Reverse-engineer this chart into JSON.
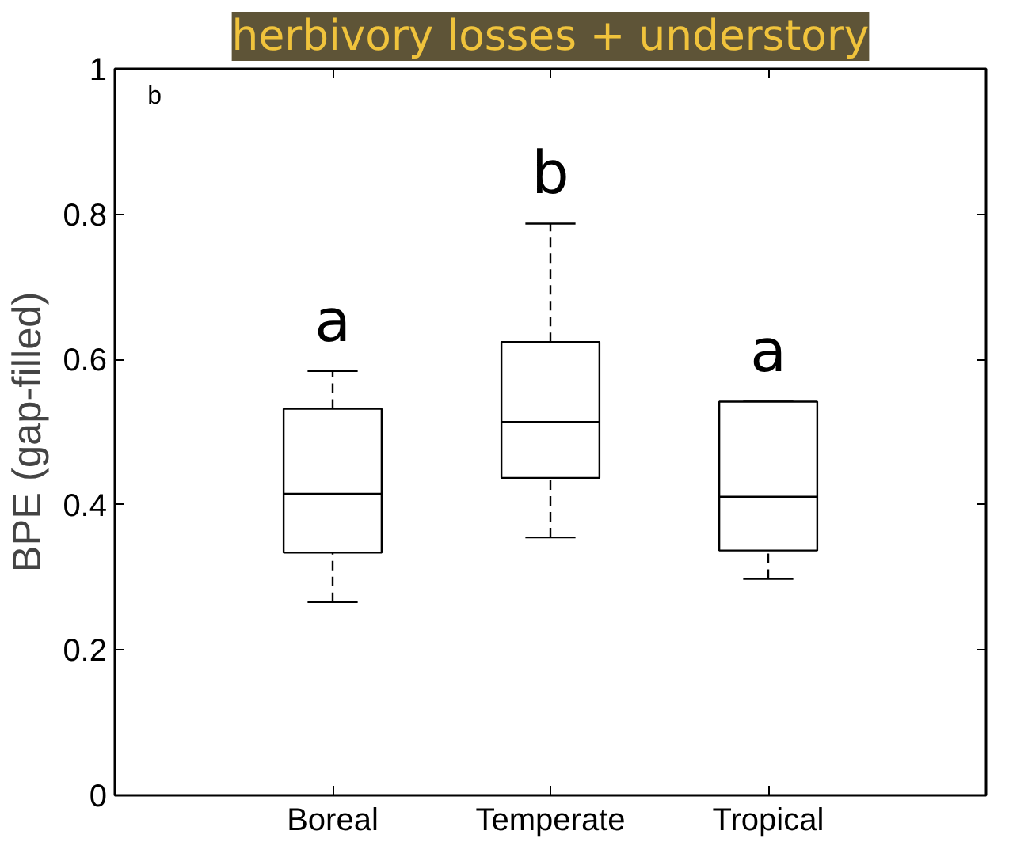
{
  "chart_data": {
    "type": "box",
    "title": "herbivory losses + understory",
    "ylabel": "BPE (gap-filled)",
    "categories": [
      "Boreal",
      "Temperate",
      "Tropical"
    ],
    "boxes": [
      {
        "low": 0.266,
        "q1": 0.334,
        "median": 0.415,
        "q3": 0.532,
        "high": 0.584
      },
      {
        "low": 0.355,
        "q1": 0.437,
        "median": 0.514,
        "q3": 0.624,
        "high": 0.787
      },
      {
        "low": 0.298,
        "q1": 0.337,
        "median": 0.411,
        "q3": 0.542,
        "high": 0.542
      }
    ],
    "ylim": [
      0,
      1
    ],
    "yticks": [
      0,
      0.2,
      0.4,
      0.6,
      0.8,
      1
    ],
    "grid": false,
    "annotations": [
      "b",
      "a",
      "b",
      "a"
    ]
  }
}
